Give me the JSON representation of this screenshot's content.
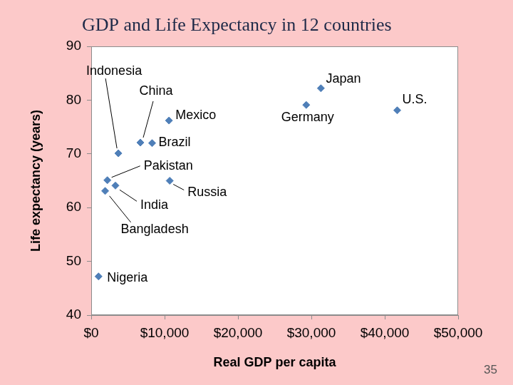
{
  "chart_data": {
    "type": "scatter",
    "title": "GDP and Life Expectancy in 12 countries",
    "x_label": "Real GDP per capita",
    "y_label": "Life expectancy (years)",
    "labels": [
      "Nigeria",
      "Bangladesh",
      "Pakistan",
      "India",
      "Indonesia",
      "China",
      "Brazil",
      "Mexico",
      "Russia",
      "Germany",
      "Japan",
      "U.S."
    ],
    "x": [
      1000,
      1900,
      2200,
      3300,
      3700,
      6700,
      8300,
      10600,
      10700,
      29300,
      31300,
      41700
    ],
    "values": [
      47.2,
      63.1,
      65.1,
      64.1,
      70.1,
      72.1,
      72,
      76.2,
      65,
      79.1,
      82.2,
      78.1
    ],
    "color": "#4f7fb8",
    "marker": "diamond",
    "xlim": [
      0,
      50000
    ],
    "xticks": [
      {
        "value": 0,
        "label": "$0"
      },
      {
        "value": 10000,
        "label": "$10,000"
      },
      {
        "value": 20000,
        "label": "$20,000"
      },
      {
        "value": 30000,
        "label": "$30,000"
      },
      {
        "value": 40000,
        "label": "$40,000"
      },
      {
        "value": 50000,
        "label": "$50,000"
      }
    ],
    "ylim": [
      40,
      90
    ],
    "yticks": [
      40,
      50,
      60,
      70,
      80,
      90
    ],
    "grid": false
  },
  "slide_number": "35"
}
